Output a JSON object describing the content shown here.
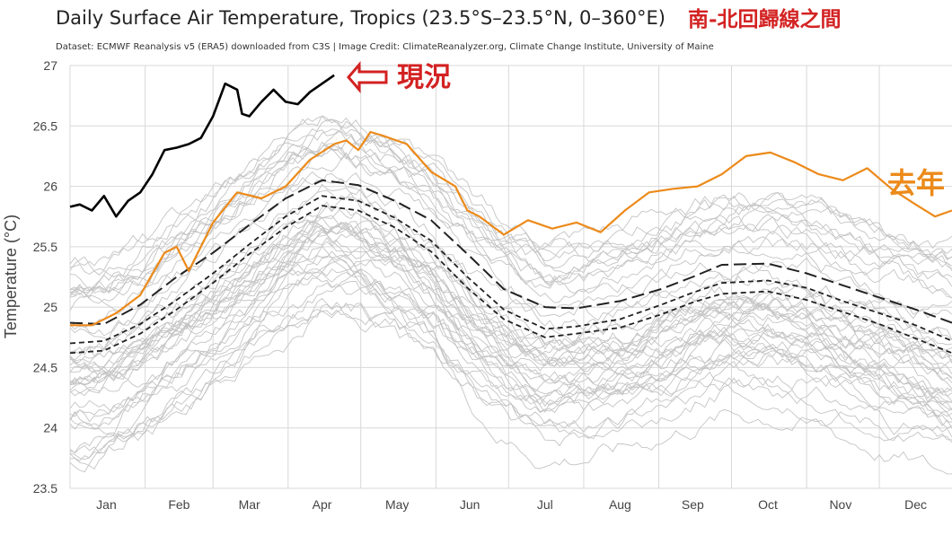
{
  "chart_data": {
    "type": "line",
    "title": "Daily Surface Air Temperature, Tropics (23.5°S–23.5°N, 0–360°E)",
    "subtitle": "Dataset: ECMWF Reanalysis v5 (ERA5) downloaded from C3S | Image Credit: ClimateReanalyzer.org, Climate Change Institute, University of Maine",
    "ylabel": "Temperature (°C)",
    "xlabel": "",
    "ylim": [
      23.5,
      27
    ],
    "yticks": [
      23.5,
      24,
      24.5,
      25,
      25.5,
      26,
      26.5,
      27
    ],
    "xlim": [
      1,
      365
    ],
    "x_ticks": [
      {
        "label": "Jan",
        "day": 16
      },
      {
        "label": "Feb",
        "day": 46
      },
      {
        "label": "Mar",
        "day": 75
      },
      {
        "label": "Apr",
        "day": 105
      },
      {
        "label": "May",
        "day": 136
      },
      {
        "label": "Jun",
        "day": 166
      },
      {
        "label": "Jul",
        "day": 197
      },
      {
        "label": "Aug",
        "day": 228
      },
      {
        "label": "Sep",
        "day": 258
      },
      {
        "label": "Oct",
        "day": 289
      },
      {
        "label": "Nov",
        "day": 319
      },
      {
        "label": "Dec",
        "day": 350
      }
    ],
    "grid": true,
    "colors": {
      "current": "#000000",
      "last_year": "#ec8a1a",
      "reference": "#222222",
      "history": "#c4c4c4",
      "annotation": "#d32222"
    },
    "series": [
      {
        "style": "solid-black",
        "x": [
          1,
          5,
          10,
          15,
          20,
          25,
          30,
          35,
          40,
          45,
          50,
          55,
          60,
          65,
          70,
          72,
          75,
          80,
          85,
          90,
          95,
          100,
          105,
          110
        ],
        "values": [
          25.83,
          25.85,
          25.8,
          25.92,
          25.75,
          25.88,
          25.95,
          26.1,
          26.3,
          26.32,
          26.35,
          26.4,
          26.58,
          26.85,
          26.8,
          26.6,
          26.58,
          26.7,
          26.8,
          26.7,
          26.68,
          26.78,
          26.85,
          26.92
        ]
      },
      {
        "style": "solid-orange",
        "x": [
          1,
          10,
          20,
          30,
          40,
          45,
          50,
          60,
          70,
          80,
          90,
          100,
          110,
          115,
          120,
          125,
          130,
          140,
          150,
          160,
          165,
          170,
          180,
          190,
          200,
          210,
          220,
          230,
          240,
          250,
          260,
          270,
          280,
          290,
          300,
          310,
          320,
          330,
          340,
          350,
          358,
          365
        ],
        "values": [
          24.85,
          24.85,
          24.95,
          25.1,
          25.45,
          25.5,
          25.3,
          25.7,
          25.95,
          25.9,
          26.0,
          26.22,
          26.35,
          26.38,
          26.3,
          26.45,
          26.42,
          26.35,
          26.12,
          26.0,
          25.8,
          25.75,
          25.6,
          25.72,
          25.65,
          25.7,
          25.62,
          25.8,
          25.95,
          25.98,
          26.0,
          26.1,
          26.25,
          26.28,
          26.2,
          26.1,
          26.05,
          26.15,
          25.98,
          25.85,
          25.75,
          25.8
        ]
      },
      {
        "style": "long-dash",
        "x": [
          1,
          15,
          30,
          45,
          60,
          75,
          90,
          105,
          120,
          135,
          150,
          165,
          180,
          197,
          210,
          228,
          245,
          258,
          270,
          289,
          305,
          320,
          335,
          350,
          365
        ],
        "values": [
          24.87,
          24.86,
          25.02,
          25.25,
          25.45,
          25.68,
          25.9,
          26.05,
          26.01,
          25.88,
          25.72,
          25.44,
          25.15,
          25.0,
          24.99,
          25.05,
          25.15,
          25.25,
          25.35,
          25.36,
          25.28,
          25.18,
          25.08,
          24.98,
          24.87
        ]
      },
      {
        "style": "short-dash",
        "x": [
          1,
          15,
          30,
          45,
          60,
          75,
          90,
          105,
          120,
          135,
          150,
          165,
          180,
          197,
          210,
          228,
          245,
          258,
          270,
          289,
          305,
          320,
          335,
          350,
          365
        ],
        "values": [
          24.7,
          24.72,
          24.86,
          25.06,
          25.28,
          25.52,
          25.75,
          25.92,
          25.88,
          25.74,
          25.55,
          25.25,
          24.98,
          24.82,
          24.84,
          24.9,
          25.02,
          25.12,
          25.2,
          25.22,
          25.16,
          25.05,
          24.95,
          24.85,
          24.72
        ]
      },
      {
        "style": "short-dash",
        "x": [
          1,
          15,
          30,
          45,
          60,
          75,
          90,
          105,
          120,
          135,
          150,
          165,
          180,
          197,
          210,
          228,
          245,
          258,
          270,
          289,
          305,
          320,
          335,
          350,
          365
        ],
        "values": [
          24.62,
          24.64,
          24.78,
          24.98,
          25.2,
          25.44,
          25.66,
          25.84,
          25.8,
          25.66,
          25.46,
          25.16,
          24.9,
          24.75,
          24.78,
          24.83,
          24.94,
          25.04,
          25.11,
          25.13,
          25.06,
          24.96,
          24.86,
          24.74,
          24.62
        ]
      }
    ],
    "history_spread": 0.8
  },
  "annotations": {
    "top_right": "南-北回歸線之間",
    "current": "現況",
    "last_year": "去年"
  }
}
